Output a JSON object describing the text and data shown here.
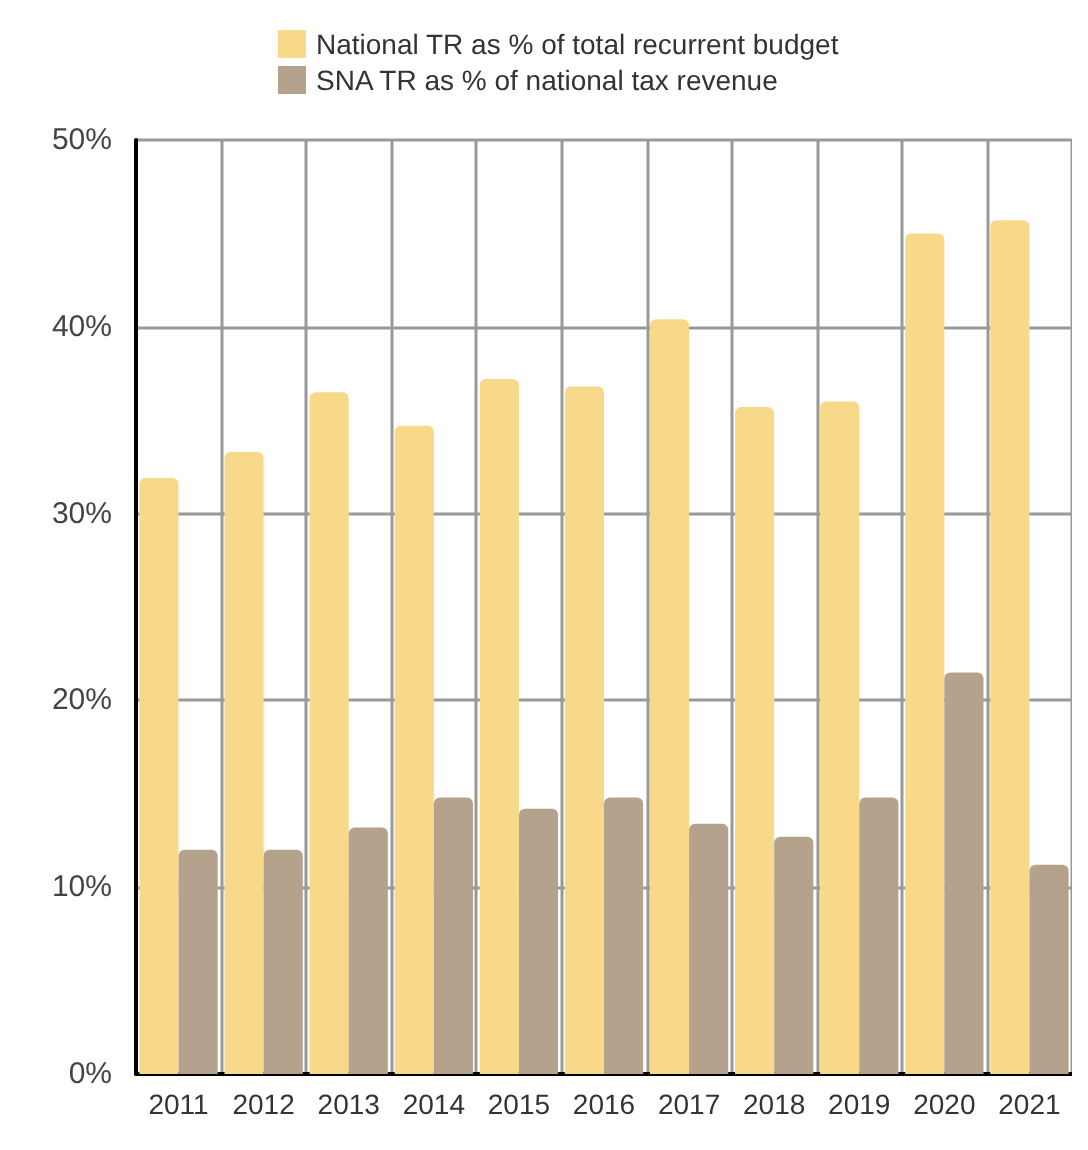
{
  "chart_data": {
    "type": "bar",
    "categories": [
      "2011",
      "2012",
      "2013",
      "2014",
      "2015",
      "2016",
      "2017",
      "2018",
      "2019",
      "2020",
      "2021"
    ],
    "series": [
      {
        "name": "National TR as % of total recurrent budget",
        "color": "#f8d98a",
        "values": [
          31.9,
          33.3,
          36.5,
          34.7,
          37.2,
          36.8,
          40.4,
          35.7,
          36.0,
          45.0,
          45.7
        ]
      },
      {
        "name": "SNA TR as % of national tax revenue",
        "color": "#b5a28c",
        "values": [
          12.0,
          12.0,
          13.2,
          14.8,
          14.2,
          14.8,
          13.4,
          12.7,
          14.8,
          21.5,
          11.2
        ]
      }
    ],
    "ylim": [
      0,
      50
    ],
    "yticks": [
      {
        "value": 0,
        "label": "0%"
      },
      {
        "value": 10,
        "label": "10%"
      },
      {
        "value": 20,
        "label": "20%"
      },
      {
        "value": 30,
        "label": "30%"
      },
      {
        "value": 40,
        "label": "40%"
      },
      {
        "value": 50,
        "label": "50%"
      }
    ],
    "grid": true,
    "legend": "top"
  }
}
